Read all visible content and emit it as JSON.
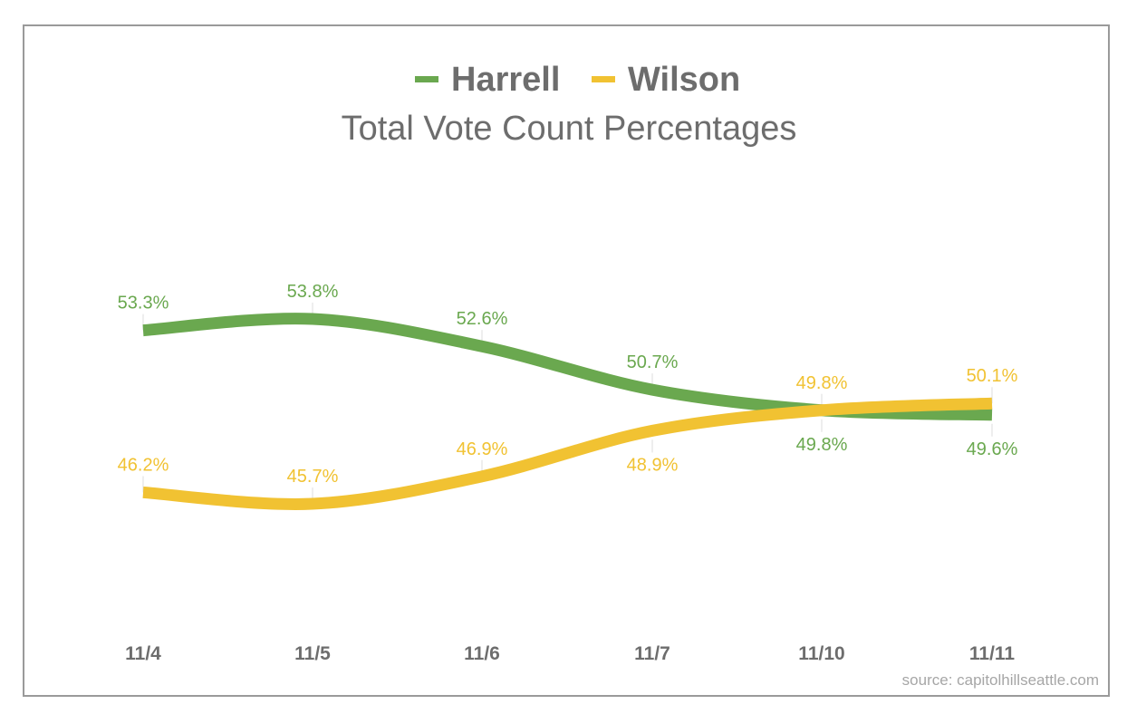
{
  "chart_data": {
    "type": "line",
    "title": "Total Vote Count Percentages",
    "categories": [
      "11/4",
      "11/5",
      "11/6",
      "11/7",
      "11/10",
      "11/11"
    ],
    "series": [
      {
        "name": "Harrell",
        "color": "#6aa84f",
        "values": [
          53.3,
          53.8,
          52.6,
          50.7,
          49.8,
          49.6
        ],
        "labels": [
          "53.3%",
          "53.8%",
          "52.6%",
          "50.7%",
          "49.8%",
          "49.6%"
        ]
      },
      {
        "name": "Wilson",
        "color": "#f1c232",
        "values": [
          46.2,
          45.7,
          46.9,
          48.9,
          49.8,
          50.1
        ],
        "labels": [
          "46.2%",
          "45.7%",
          "46.9%",
          "48.9%",
          "49.8%",
          "50.1%"
        ]
      }
    ],
    "xlabel": "",
    "ylabel": "",
    "legend": "top-center",
    "grid": false,
    "source": "source: capitolhillseattle.com"
  }
}
